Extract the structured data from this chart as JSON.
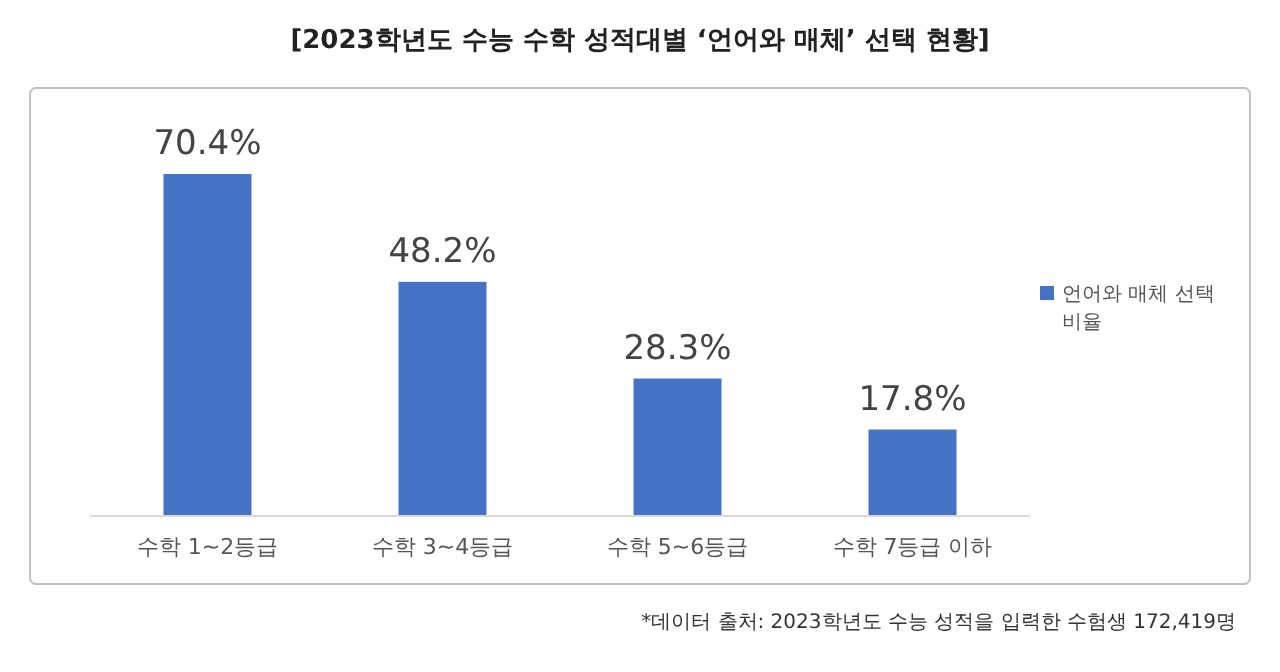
{
  "chart_data": {
    "type": "bar",
    "title": "[2023학년도 수능 수학 성적대별 ‘언어와 매체’ 선택 현황]",
    "categories": [
      "수학 1~2등급",
      "수학 3~4등급",
      "수학 5~6등급",
      "수학 7등급 이하"
    ],
    "series": [
      {
        "name": "언어와 매체 선택 비율",
        "color": "#4472c4",
        "values": [
          70.4,
          48.2,
          28.3,
          17.8
        ],
        "value_labels": [
          "70.4%",
          "48.2%",
          "28.3%",
          "17.8%"
        ]
      }
    ],
    "legend": "right",
    "annotations": [
      "*데이터 출처: 2023학년도 수능 성적을 입력한 수험생 172,419명"
    ]
  }
}
